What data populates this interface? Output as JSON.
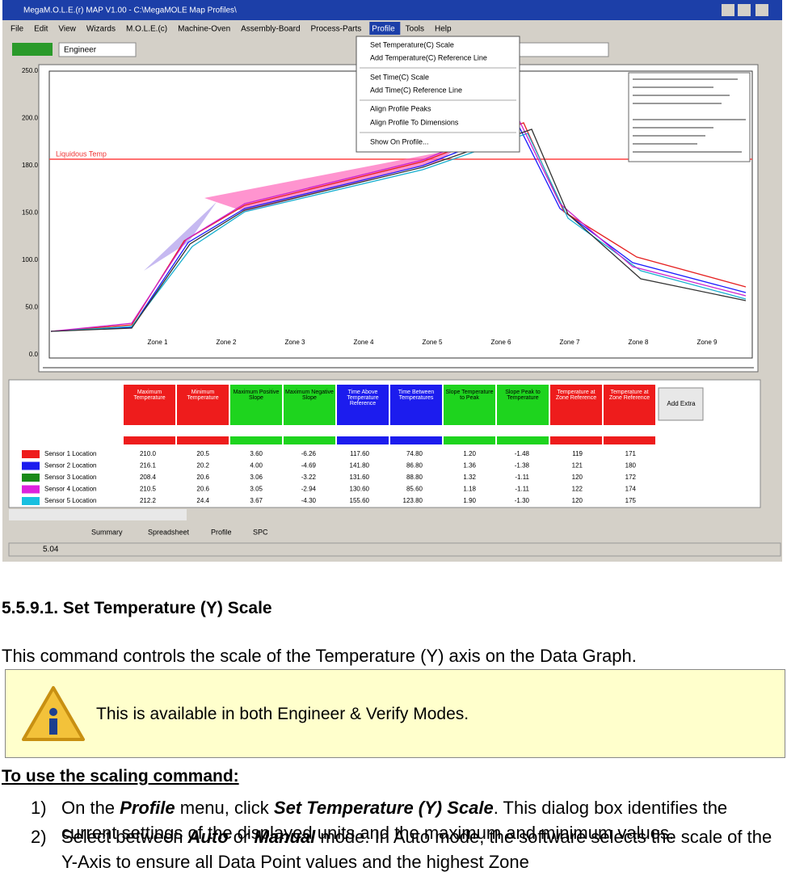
{
  "screenshot": {
    "window_title": "MegaM.O.L.E.(r) MAP V1.00 - C:\\MegaMOLE Map Profiles\\",
    "menu": [
      "File",
      "Edit",
      "View",
      "Wizards",
      "M.O.L.E.(c)",
      "Machine-Oven",
      "Assembly-Board",
      "Process-Parts",
      "Profile",
      "Tools",
      "Help"
    ],
    "mode": "Engineer",
    "profile_menu": [
      "Set Temperature(C) Scale",
      "Add Temperature(C) Reference Line",
      "Set Time(C) Scale",
      "Add Time(C) Reference Line",
      "Align Profile Peaks",
      "Align Profile To Dimensions",
      "Show On Profile..."
    ],
    "y_axis_labels": [
      "250.0",
      "200.0",
      "180.0",
      "150.0",
      "100.0",
      "50.0",
      "0.0"
    ],
    "reference_line": "Liquidous Temp",
    "zones": [
      "Zone 1",
      "Zone 2",
      "Zone 3",
      "Zone 4",
      "Zone 5",
      "Zone 6",
      "Zone 7",
      "Zone 8",
      "Zone 9"
    ],
    "table_headers": [
      "Maximum Temperature",
      "Minimum Temperature",
      "Maximum Positive Slope",
      "Maximum Negative Slope",
      "Time Above Temperature Reference",
      "Time Between Temperatures",
      "Slope Temperature to Peak",
      "Slope Peak to Temperature",
      "Temperature at Zone Reference",
      "Temperature at Zone Reference"
    ],
    "add_extra": "Add Extra",
    "rows": [
      {
        "name": "Sensor 1 Location",
        "cells": [
          "210.0",
          "20.5",
          "3.60",
          "-6.26",
          "117.60",
          "74.80",
          "1.20",
          "-1.48",
          "119",
          "171"
        ]
      },
      {
        "name": "Sensor 2 Location",
        "cells": [
          "216.1",
          "20.2",
          "4.00",
          "-4.69",
          "141.80",
          "86.80",
          "1.36",
          "-1.38",
          "121",
          "180"
        ]
      },
      {
        "name": "Sensor 3 Location",
        "cells": [
          "208.4",
          "20.6",
          "3.06",
          "-3.22",
          "131.60",
          "88.80",
          "1.32",
          "-1.11",
          "120",
          "172"
        ]
      },
      {
        "name": "Sensor 4 Location",
        "cells": [
          "210.5",
          "20.6",
          "3.05",
          "-2.94",
          "130.60",
          "85.60",
          "1.18",
          "-1.11",
          "122",
          "174"
        ]
      },
      {
        "name": "Sensor 5 Location",
        "cells": [
          "212.2",
          "24.4",
          "3.67",
          "-4.30",
          "155.60",
          "123.80",
          "1.90",
          "-1.30",
          "120",
          "175"
        ]
      }
    ],
    "tabs": [
      "Summary",
      "Spreadsheet",
      "Profile",
      "SPC"
    ],
    "status": "5.04"
  },
  "heading": "5.5.9.1. Set Temperature (Y) Scale",
  "intro": "This command controls the scale of the Temperature (Y) axis on the Data Graph.",
  "note": "This is available in both Engineer & Verify Modes.",
  "subheading": "To use the scaling command:",
  "steps": [
    {
      "number": "1)",
      "parts": [
        "On the ",
        "Profile",
        " menu, click ",
        "Set Temperature (Y) Scale",
        ". This dialog box identifies the current settings of the displayed units and the maximum and minimum values."
      ]
    },
    {
      "number": "2)",
      "parts": [
        "Select between ",
        "Auto",
        " or ",
        "Manual",
        " mode. In Auto mode, the software selects the scale of the Y-Axis to ensure all Data Point values and the highest Zone"
      ]
    }
  ]
}
